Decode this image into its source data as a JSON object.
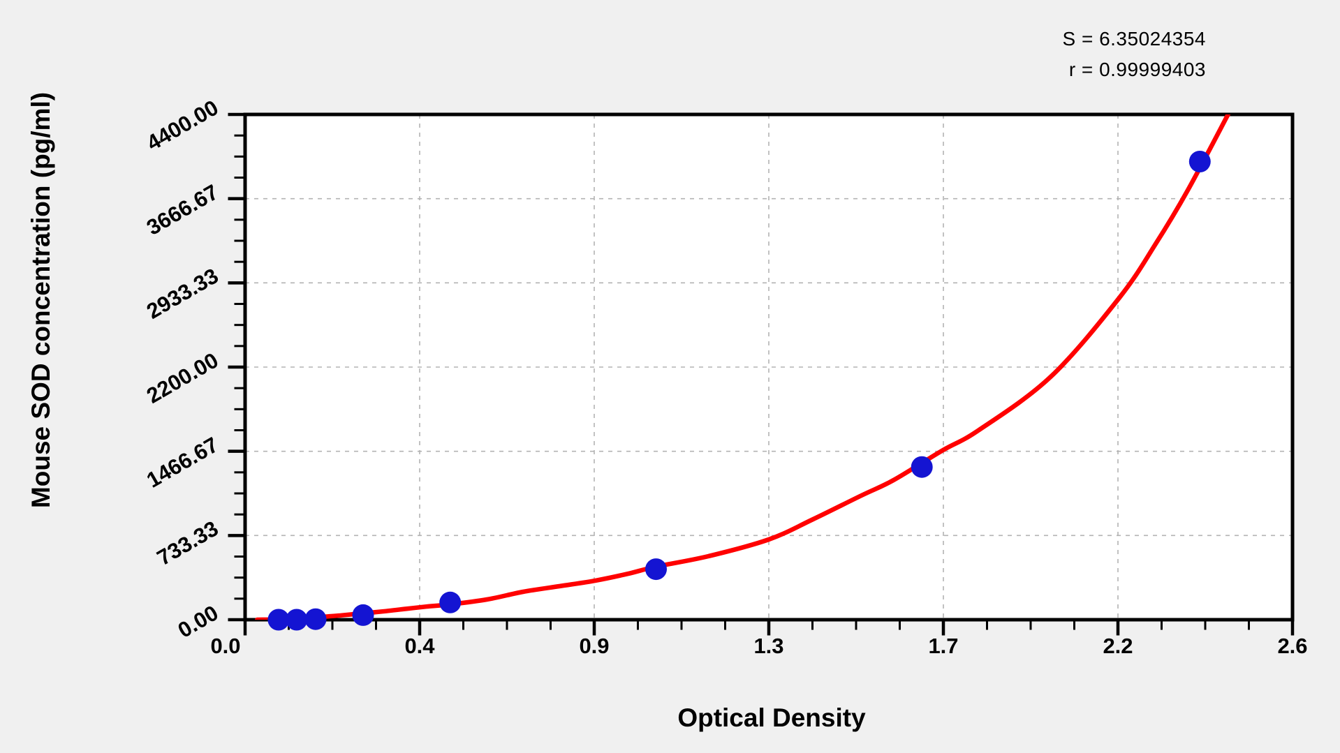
{
  "stats": {
    "s_label": "S = 6.35024354",
    "r_label": "r = 0.99999403"
  },
  "chart_data": {
    "type": "scatter",
    "title": "",
    "xlabel": "Optical Density",
    "ylabel": "Mouse SOD concentration (pg/ml)",
    "x_range": [
      0,
      2.6
    ],
    "y_range": [
      0,
      4400
    ],
    "x_tick_labels": [
      "0.0",
      "0.4",
      "0.9",
      "1.3",
      "1.7",
      "2.2",
      "2.6"
    ],
    "y_tick_labels": [
      "0.00",
      "733.33",
      "1466.67",
      "2200.00",
      "2933.33",
      "3666.67",
      "4400.00"
    ],
    "x_major_divisions": 6,
    "y_major_divisions": 6,
    "minor_ticks_per_major": 3,
    "grid": "dashed at major divisions, both axes",
    "legend": "none",
    "annotations": [
      "S = 6.35024354",
      "r = 0.99999403"
    ],
    "points": [
      {
        "od": 0.083,
        "conc": 0
      },
      {
        "od": 0.128,
        "conc": 0
      },
      {
        "od": 0.175,
        "conc": 5
      },
      {
        "od": 0.293,
        "conc": 40
      },
      {
        "od": 0.509,
        "conc": 150
      },
      {
        "od": 1.02,
        "conc": 440
      },
      {
        "od": 1.68,
        "conc": 1330
      },
      {
        "od": 2.37,
        "conc": 3990
      }
    ],
    "fit_curve_samples": [
      [
        0.03,
        0
      ],
      [
        0.09,
        3
      ],
      [
        0.13,
        10
      ],
      [
        0.18,
        22
      ],
      [
        0.24,
        38
      ],
      [
        0.29,
        55
      ],
      [
        0.35,
        75
      ],
      [
        0.4,
        95
      ],
      [
        0.45,
        114
      ],
      [
        0.51,
        134
      ],
      [
        0.6,
        176
      ],
      [
        0.69,
        243
      ],
      [
        0.78,
        292
      ],
      [
        0.87,
        341
      ],
      [
        0.95,
        400
      ],
      [
        1.02,
        462
      ],
      [
        1.15,
        553
      ],
      [
        1.3,
        699
      ],
      [
        1.41,
        875
      ],
      [
        1.53,
        1082
      ],
      [
        1.61,
        1216
      ],
      [
        1.73,
        1472
      ],
      [
        1.82,
        1648
      ],
      [
        2.0,
        2116
      ],
      [
        2.17,
        2803
      ],
      [
        2.26,
        3271
      ],
      [
        2.34,
        3740
      ],
      [
        2.44,
        4400
      ]
    ],
    "marker": {
      "shape": "circle",
      "radius_px": 15.5
    },
    "colors": {
      "curve": "#ff0000",
      "points": "#1414d2",
      "axis": "#000000",
      "grid": "#b3b3b3",
      "plot_bg": "#ffffff",
      "page_bg": "#f0f0f0",
      "text": "#000000"
    }
  }
}
